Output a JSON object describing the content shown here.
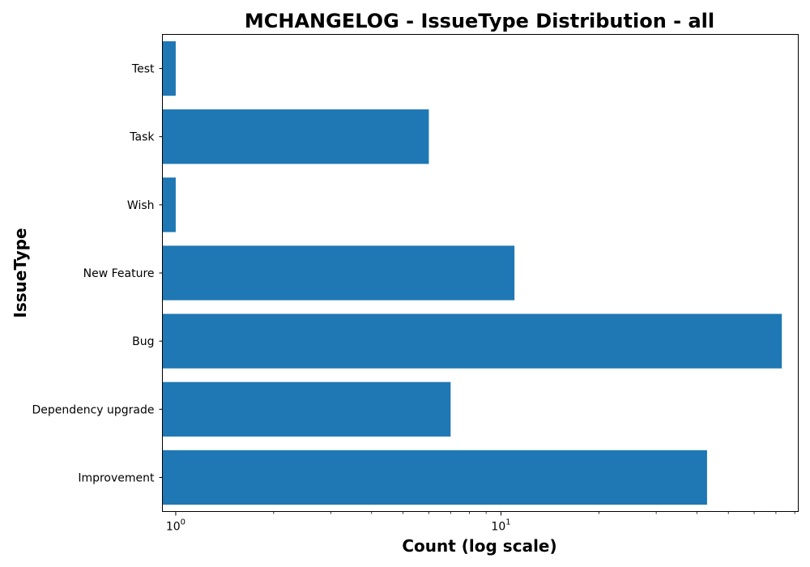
{
  "chart_data": {
    "type": "bar",
    "orientation": "horizontal",
    "title": "MCHANGELOG - IssueType Distribution - all",
    "xlabel": "Count (log scale)",
    "ylabel": "IssueType",
    "x_scale": "log",
    "xlim": [
      0.91,
      82
    ],
    "x_ticks": [
      {
        "value": 1,
        "base": "10",
        "exponent": "0"
      },
      {
        "value": 10,
        "base": "10",
        "exponent": "1"
      }
    ],
    "categories": [
      "Improvement",
      "Dependency upgrade",
      "Bug",
      "New Feature",
      "Wish",
      "Task",
      "Test"
    ],
    "values": [
      43,
      7,
      73,
      11,
      1,
      6,
      1
    ],
    "grid": false,
    "legend": "none",
    "colors": {
      "bar": "#1f77b4",
      "axis": "#000000",
      "background": "#ffffff"
    }
  }
}
